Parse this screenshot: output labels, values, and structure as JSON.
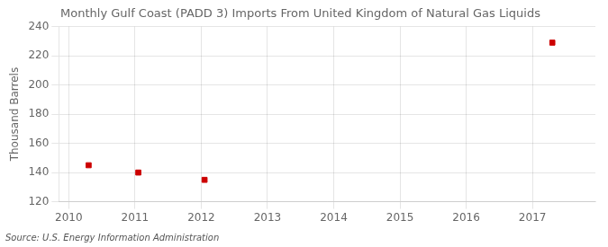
{
  "chart_data": {
    "type": "scatter",
    "title": "Monthly Gulf Coast (PADD 3) Imports From United Kingdom of Natural Gas Liquids",
    "ylabel": "Thousand Barrels",
    "source": "Source: U.S. Energy Information Administration",
    "x": [
      2010.3,
      2011.05,
      2012.05,
      2017.3
    ],
    "values": [
      145,
      140,
      135,
      229
    ],
    "color": "#cc0000",
    "marker": "square",
    "xlim": [
      2009.85,
      2017.95
    ],
    "ylim": [
      120,
      240
    ],
    "xticks": [
      2010,
      2011,
      2012,
      2013,
      2014,
      2015,
      2016,
      2017
    ],
    "yticks": [
      120,
      140,
      160,
      180,
      200,
      220,
      240
    ],
    "grid": true
  }
}
